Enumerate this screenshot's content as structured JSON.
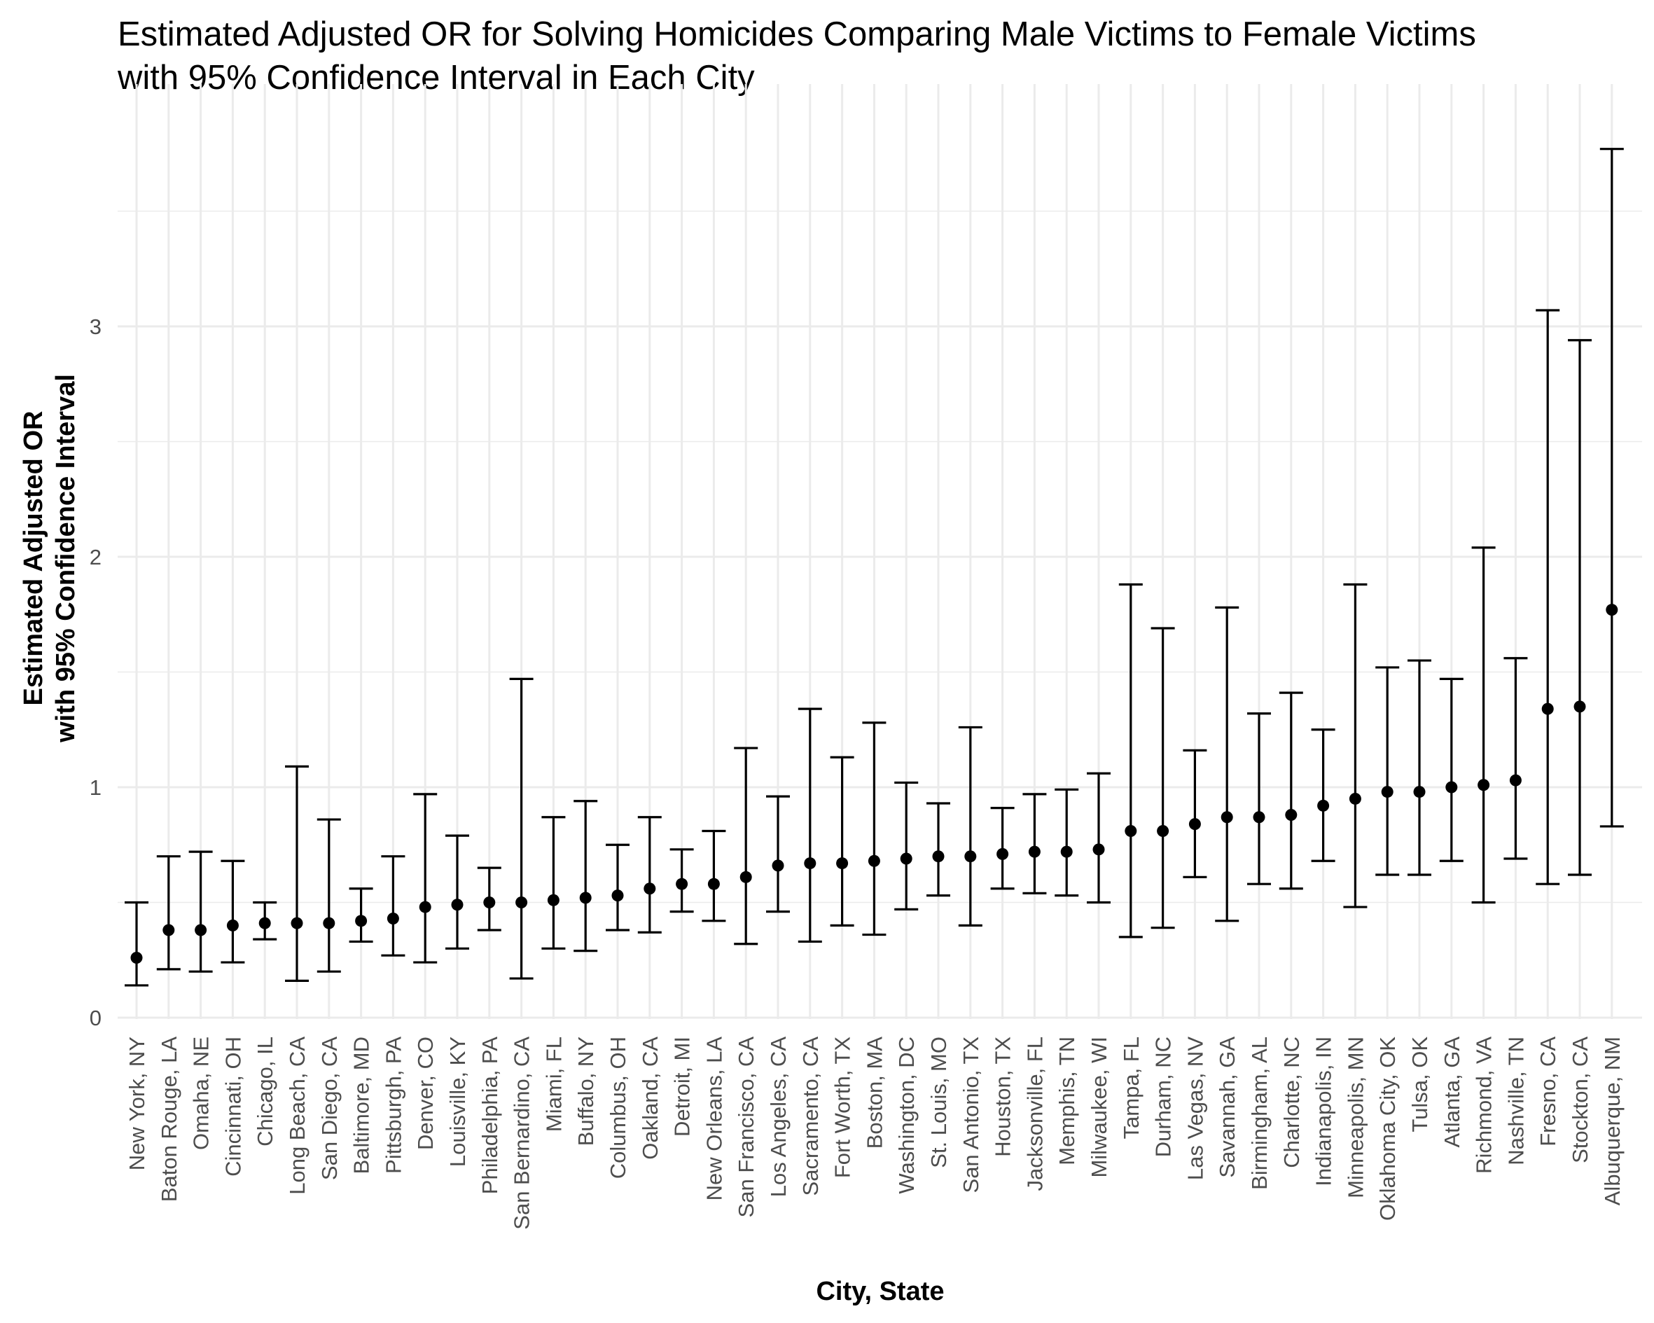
{
  "chart_data": {
    "type": "errorbar",
    "title": "Estimated Adjusted OR for Solving Homicides Comparing Male Victims to Female Victims",
    "subtitle": "with 95% Confidence Interval in Each City",
    "xlabel": "City, State",
    "ylabel": "Estimated Adjusted OR",
    "ylabel_line2": "with 95% Confidence Interval",
    "ylim": [
      0,
      3.8
    ],
    "yticks": [
      "0",
      "1",
      "2",
      "3"
    ],
    "grid": true,
    "colors": {
      "marks": "#000000",
      "grid": "#ebebeb",
      "tick_text": "#4d4d4d"
    },
    "categories": [
      "New York, NY",
      "Baton Rouge, LA",
      "Omaha, NE",
      "Cincinnati, OH",
      "Chicago, IL",
      "Long Beach, CA",
      "San Diego, CA",
      "Baltimore, MD",
      "Pittsburgh, PA",
      "Denver, CO",
      "Louisville, KY",
      "Philadelphia, PA",
      "San Bernardino, CA",
      "Miami, FL",
      "Buffalo, NY",
      "Columbus, OH",
      "Oakland, CA",
      "Detroit, MI",
      "New Orleans, LA",
      "San Francisco, CA",
      "Los Angeles, CA",
      "Sacramento, CA",
      "Fort Worth, TX",
      "Boston, MA",
      "Washington, DC",
      "St. Louis, MO",
      "San Antonio, TX",
      "Houston, TX",
      "Jacksonville, FL",
      "Memphis, TN",
      "Milwaukee, WI",
      "Tampa, FL",
      "Durham, NC",
      "Las Vegas, NV",
      "Savannah, GA",
      "Birmingham, AL",
      "Charlotte, NC",
      "Indianapolis, IN",
      "Minneapolis, MN",
      "Oklahoma City, OK",
      "Tulsa, OK",
      "Atlanta, GA",
      "Richmond, VA",
      "Nashville, TN",
      "Fresno, CA",
      "Stockton, CA",
      "Albuquerque, NM"
    ],
    "estimate": [
      0.26,
      0.38,
      0.38,
      0.4,
      0.41,
      0.41,
      0.41,
      0.42,
      0.43,
      0.48,
      0.49,
      0.5,
      0.5,
      0.51,
      0.52,
      0.53,
      0.56,
      0.58,
      0.58,
      0.61,
      0.66,
      0.67,
      0.67,
      0.68,
      0.69,
      0.7,
      0.7,
      0.71,
      0.72,
      0.72,
      0.73,
      0.81,
      0.81,
      0.84,
      0.87,
      0.87,
      0.88,
      0.92,
      0.95,
      0.98,
      0.98,
      1.0,
      1.01,
      1.03,
      1.34,
      1.35,
      1.77
    ],
    "ci_lower": [
      0.14,
      0.21,
      0.2,
      0.24,
      0.34,
      0.16,
      0.2,
      0.33,
      0.27,
      0.24,
      0.3,
      0.38,
      0.17,
      0.3,
      0.29,
      0.38,
      0.37,
      0.46,
      0.42,
      0.32,
      0.46,
      0.33,
      0.4,
      0.36,
      0.47,
      0.53,
      0.4,
      0.56,
      0.54,
      0.53,
      0.5,
      0.35,
      0.39,
      0.61,
      0.42,
      0.58,
      0.56,
      0.68,
      0.48,
      0.62,
      0.62,
      0.68,
      0.5,
      0.69,
      0.58,
      0.62,
      0.83
    ],
    "ci_upper": [
      0.5,
      0.7,
      0.72,
      0.68,
      0.5,
      1.09,
      0.86,
      0.56,
      0.7,
      0.97,
      0.79,
      0.65,
      1.47,
      0.87,
      0.94,
      0.75,
      0.87,
      0.73,
      0.81,
      1.17,
      0.96,
      1.34,
      1.13,
      1.28,
      1.02,
      0.93,
      1.26,
      0.91,
      0.97,
      0.99,
      1.06,
      1.88,
      1.69,
      1.16,
      1.78,
      1.32,
      1.41,
      1.25,
      1.88,
      1.52,
      1.55,
      1.47,
      2.04,
      1.56,
      3.07,
      2.94,
      3.77
    ]
  }
}
